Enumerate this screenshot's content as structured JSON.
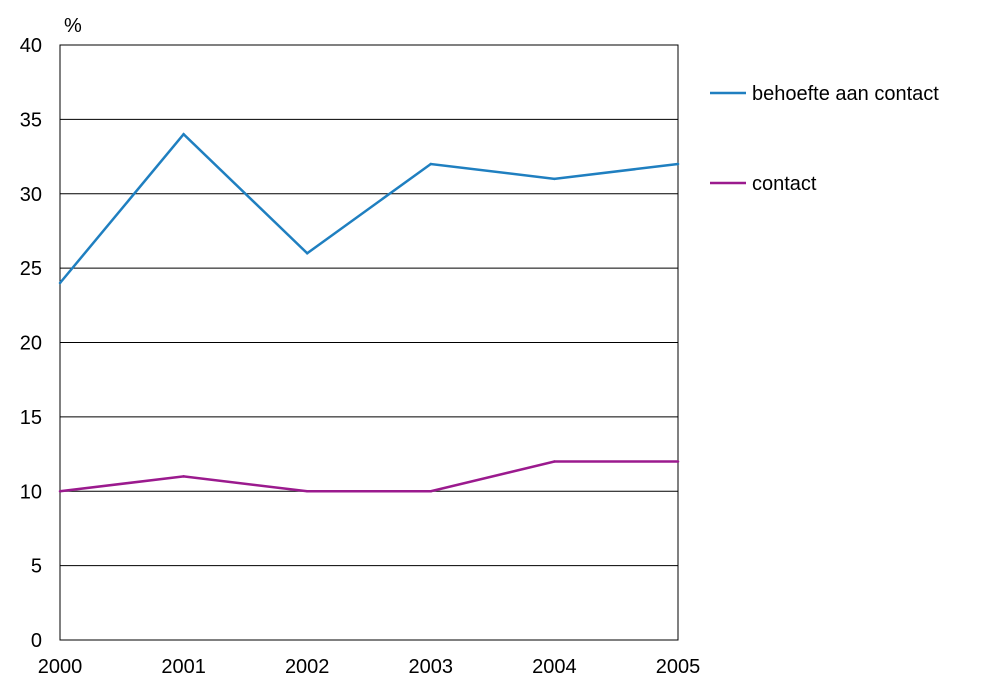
{
  "chart_data": {
    "type": "line",
    "ylabel": "%",
    "x": [
      "2000",
      "2001",
      "2002",
      "2003",
      "2004",
      "2005"
    ],
    "ylim": [
      0,
      40
    ],
    "yticks": [
      0,
      5,
      10,
      15,
      20,
      25,
      30,
      35,
      40
    ],
    "grid": true,
    "legend_position": "right",
    "series": [
      {
        "name": "behoefte aan contact",
        "color": "#1f7fc0",
        "values": [
          24,
          34,
          26,
          32,
          31,
          32
        ]
      },
      {
        "name": "contact",
        "color": "#9b1a8e",
        "values": [
          10,
          11,
          10,
          10,
          12,
          12
        ]
      }
    ]
  }
}
